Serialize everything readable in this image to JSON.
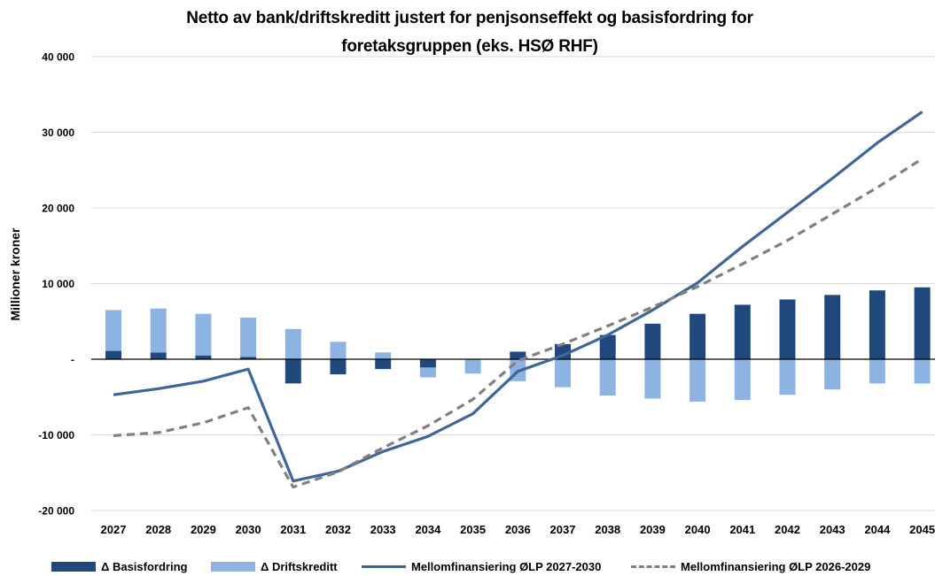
{
  "chart_data": {
    "type": "bar",
    "title_lines": [
      "Netto av bank/driftskreditt justert for penjsonseffekt og basisfordring for",
      "foretaksgruppen (eks. HSØ RHF)"
    ],
    "xlabel": "",
    "ylabel": "Millioner kroner",
    "ylim": [
      -20000,
      40000
    ],
    "y_ticks": [
      40000,
      30000,
      20000,
      10000,
      0,
      -10000,
      -20000
    ],
    "y_tick_labels": [
      "40 000",
      "30 000",
      "20 000",
      "10 000",
      "-",
      "-10 000",
      "-20 000"
    ],
    "grid": true,
    "legend_position": "bottom",
    "categories": [
      "2027",
      "2028",
      "2029",
      "2030",
      "2031",
      "2032",
      "2033",
      "2034",
      "2035",
      "2036",
      "2037",
      "2038",
      "2039",
      "2040",
      "2041",
      "2042",
      "2043",
      "2044",
      "2045"
    ],
    "bar_series": [
      {
        "name": "Δ Basisfordring",
        "color": "#1f497d",
        "values": [
          1100,
          900,
          500,
          300,
          -3200,
          -2000,
          -1300,
          -1100,
          0,
          1000,
          2000,
          3200,
          4700,
          6000,
          7200,
          7900,
          8500,
          9100,
          9500
        ]
      },
      {
        "name": "Δ Driftskreditt",
        "color": "#8db3e2",
        "values": [
          5400,
          5800,
          5500,
          5200,
          4000,
          2300,
          900,
          -1300,
          -1900,
          -2900,
          -3700,
          -4800,
          -5200,
          -5600,
          -5400,
          -4700,
          -4000,
          -3200,
          -3200
        ]
      }
    ],
    "line_series": [
      {
        "name": "Mellomfinansiering ØLP 2027-2030",
        "color": "#3e6699",
        "style": "solid",
        "values": [
          -4700,
          -3900,
          -2900,
          -1300,
          -16100,
          -14800,
          -12200,
          -10200,
          -7200,
          -1600,
          500,
          3200,
          6500,
          10100,
          14900,
          19400,
          23900,
          28600,
          32700
        ]
      },
      {
        "name": "Mellomfinansiering ØLP 2026-2029",
        "color": "#808080",
        "style": "dashed",
        "values": [
          -10100,
          -9700,
          -8400,
          -6400,
          -16900,
          -14900,
          -11700,
          -8800,
          -5300,
          -200,
          2000,
          4400,
          6900,
          9600,
          12600,
          15700,
          19200,
          22700,
          26500
        ]
      }
    ]
  }
}
